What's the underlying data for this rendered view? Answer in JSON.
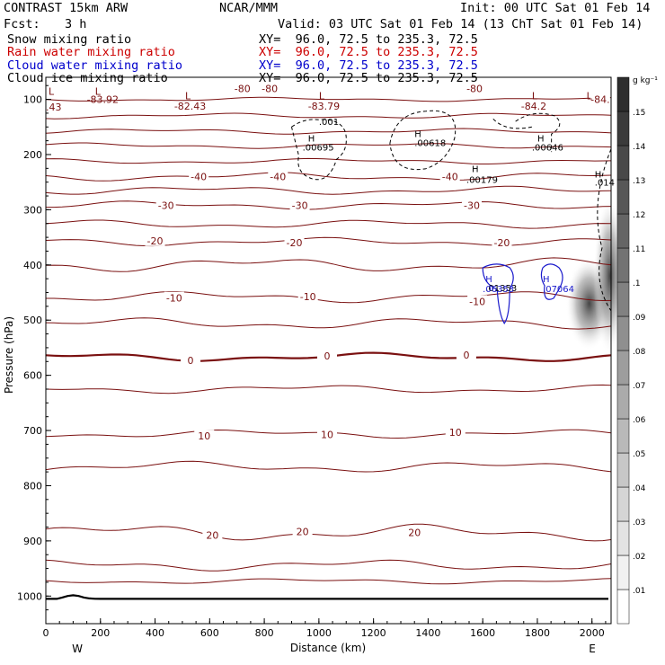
{
  "header": {
    "model": "CONTRAST 15km ARW",
    "center": "NCAR/MMM",
    "init": "Init: 00 UTC Sat 01 Feb 14",
    "fcst_label": "Fcst:",
    "fcst_value": "3 h",
    "valid": "Valid: 03 UTC Sat 01 Feb 14 (13 ChT Sat 01 Feb 14)"
  },
  "fields": [
    {
      "name": "Snow mixing ratio",
      "xy": "XY=  96.0, 72.5 to 235.3, 72.5",
      "color": "#000000"
    },
    {
      "name": "Rain water mixing ratio",
      "xy": "XY=  96.0, 72.5 to 235.3, 72.5",
      "color": "#cc0000"
    },
    {
      "name": "Cloud water mixing ratio",
      "xy": "XY=  96.0, 72.5 to 235.3, 72.5",
      "color": "#0000cc"
    },
    {
      "name": "Cloud ice mixing ratio",
      "xy": "XY=  96.0, 72.5 to 235.3, 72.5",
      "color": "#000000"
    }
  ],
  "colorbar": {
    "unit": "g kg⁻¹",
    "ticks": [
      ".01",
      ".02",
      ".03",
      ".04",
      ".05",
      ".06",
      ".07",
      ".08",
      ".09",
      ".1",
      ".11",
      ".12",
      ".13",
      ".14",
      ".15"
    ]
  },
  "chart_data": {
    "type": "cross-section contour",
    "xlabel": "Distance (km)",
    "ylabel": "Pressure (hPa)",
    "x_ticks": [
      0,
      200,
      400,
      600,
      800,
      1000,
      1200,
      1400,
      1600,
      1800,
      2000
    ],
    "x_end_labels": [
      "W",
      "E"
    ],
    "xlim": [
      0,
      2070
    ],
    "y_ticks": [
      100,
      200,
      300,
      400,
      500,
      600,
      700,
      800,
      900,
      1000
    ],
    "ylim": [
      1050,
      60
    ],
    "y_scale": "linear, pressure decreasing upward",
    "temperature_labels": [
      {
        "text": "-80",
        "x": 720,
        "p": 80
      },
      {
        "text": "-80",
        "x": 820,
        "p": 80
      },
      {
        "text": "-80",
        "x": 1570,
        "p": 80
      },
      {
        "text": "-84.",
        "x": 2030,
        "p": 100
      },
      {
        "text": "-40",
        "x": 560,
        "p": 240
      },
      {
        "text": "-40",
        "x": 850,
        "p": 240
      },
      {
        "text": "-40",
        "x": 1480,
        "p": 240
      },
      {
        "text": "-30",
        "x": 440,
        "p": 292
      },
      {
        "text": "-30",
        "x": 930,
        "p": 292
      },
      {
        "text": "-30",
        "x": 1560,
        "p": 292
      },
      {
        "text": "-20",
        "x": 400,
        "p": 356
      },
      {
        "text": "-20",
        "x": 910,
        "p": 360
      },
      {
        "text": "-20",
        "x": 1670,
        "p": 360
      },
      {
        "text": "-10",
        "x": 470,
        "p": 460
      },
      {
        "text": "-10",
        "x": 960,
        "p": 457
      },
      {
        "text": "-10",
        "x": 1580,
        "p": 466
      },
      {
        "text": "0",
        "x": 530,
        "p": 573
      },
      {
        "text": "0",
        "x": 1030,
        "p": 565
      },
      {
        "text": "0",
        "x": 1540,
        "p": 563
      },
      {
        "text": "10",
        "x": 580,
        "p": 710
      },
      {
        "text": "10",
        "x": 1030,
        "p": 707
      },
      {
        "text": "10",
        "x": 1500,
        "p": 703
      },
      {
        "text": "20",
        "x": 610,
        "p": 890
      },
      {
        "text": "20",
        "x": 940,
        "p": 883
      },
      {
        "text": "20",
        "x": 1350,
        "p": 885
      }
    ],
    "extrema_labels": [
      {
        "text": "L",
        "x": 10,
        "p": 85
      },
      {
        "text": ".43",
        "x": 0,
        "p": 114
      },
      {
        "text": "L",
        "x": 180,
        "p": 85
      },
      {
        "text": "-83.92",
        "x": 150,
        "p": 100
      },
      {
        "text": "L",
        "x": 510,
        "p": 93
      },
      {
        "text": "-82.43",
        "x": 470,
        "p": 112
      },
      {
        "text": "L",
        "x": 1000,
        "p": 93
      },
      {
        "text": "-83.79",
        "x": 960,
        "p": 112
      },
      {
        "text": "L",
        "x": 1780,
        "p": 93
      },
      {
        "text": "-84.2",
        "x": 1740,
        "p": 112
      },
      {
        "text": "L",
        "x": 1980,
        "p": 93
      }
    ],
    "snow_extrema": [
      {
        "text": ".001",
        "x": 1000,
        "p": 140
      },
      {
        "text": "H",
        "x": 960,
        "p": 170
      },
      {
        "text": ".00695",
        "x": 940,
        "p": 186
      },
      {
        "text": "H",
        "x": 1350,
        "p": 162
      },
      {
        "text": ".00618",
        "x": 1350,
        "p": 178
      },
      {
        "text": "H",
        "x": 1560,
        "p": 225
      },
      {
        "text": ".00179",
        "x": 1540,
        "p": 245
      },
      {
        "text": "H",
        "x": 1800,
        "p": 170
      },
      {
        "text": ".00646",
        "x": 1780,
        "p": 186
      },
      {
        "text": "H",
        "x": 2010,
        "p": 235
      },
      {
        "text": ".014",
        "x": 2010,
        "p": 250
      }
    ],
    "cloud_water_extrema": [
      {
        "text": "H",
        "x": 1610,
        "p": 425
      },
      {
        "text": ".06353",
        "x": 1600,
        "p": 443
      },
      {
        "text": "H",
        "x": 1820,
        "p": 425
      },
      {
        "text": ".07064",
        "x": 1820,
        "p": 443
      }
    ],
    "cloud_ice_extrema": [
      {
        "text": ".01353",
        "x": 1610,
        "p": 441
      }
    ]
  }
}
